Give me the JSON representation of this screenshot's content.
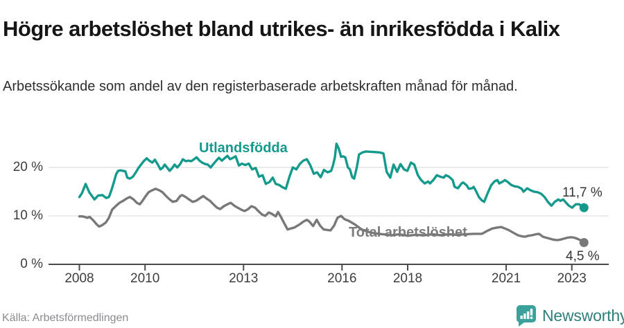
{
  "footer": {
    "source": "Källa: Arbetsförmedlingen",
    "brand": "Newsworthy"
  },
  "colors": {
    "teal_line": "#149a8c",
    "gray_line": "#787878",
    "axis": "#4a4a4a",
    "grid": "#e4e4e4",
    "brand_icon": "#3aa29a",
    "brand_text": "#2d7f7b"
  },
  "chart_data": {
    "type": "line",
    "title": "Högre arbetslöshet bland utrikes- än inrikesfödda i Kalix",
    "subtitle": "Arbetssökande som andel av den registerbaserade arbetskraften månad för månad.",
    "xlabel": "",
    "ylabel": "",
    "xlim": [
      2008.0,
      2023.6
    ],
    "ylim": [
      0,
      26
    ],
    "grid": "horizontal",
    "legend": "inline-labels",
    "x_ticks": [
      {
        "year": 2008,
        "label": "2008"
      },
      {
        "year": 2010,
        "label": "2010"
      },
      {
        "year": 2013,
        "label": "2013"
      },
      {
        "year": 2016,
        "label": "2016"
      },
      {
        "year": 2018,
        "label": "2018"
      },
      {
        "year": 2021,
        "label": "2021"
      },
      {
        "year": 2023,
        "label": "2023"
      }
    ],
    "y_ticks": [
      {
        "value": 0,
        "label": "0 %"
      },
      {
        "value": 10,
        "label": "10 %"
      },
      {
        "value": 20,
        "label": "20 %"
      }
    ],
    "series": [
      {
        "name": "Utlandsfödda",
        "color": "#149a8c",
        "end_label": "11,7 %",
        "end_value": 11.7,
        "points": [
          [
            2008.0,
            13.9
          ],
          [
            2008.08,
            14.7
          ],
          [
            2008.19,
            16.6
          ],
          [
            2008.3,
            14.9
          ],
          [
            2008.46,
            13.4
          ],
          [
            2008.57,
            14.2
          ],
          [
            2008.7,
            14.3
          ],
          [
            2008.82,
            13.7
          ],
          [
            2008.9,
            13.9
          ],
          [
            2008.96,
            15.0
          ],
          [
            2009.04,
            16.7
          ],
          [
            2009.12,
            18.6
          ],
          [
            2009.18,
            19.3
          ],
          [
            2009.25,
            19.4
          ],
          [
            2009.33,
            19.3
          ],
          [
            2009.4,
            19.2
          ],
          [
            2009.46,
            17.9
          ],
          [
            2009.54,
            17.7
          ],
          [
            2009.63,
            18.1
          ],
          [
            2009.71,
            18.9
          ],
          [
            2009.8,
            19.9
          ],
          [
            2009.88,
            20.6
          ],
          [
            2009.96,
            21.3
          ],
          [
            2010.05,
            21.9
          ],
          [
            2010.13,
            21.4
          ],
          [
            2010.22,
            21.0
          ],
          [
            2010.3,
            21.6
          ],
          [
            2010.38,
            20.7
          ],
          [
            2010.47,
            19.6
          ],
          [
            2010.53,
            19.9
          ],
          [
            2010.6,
            20.6
          ],
          [
            2010.68,
            19.9
          ],
          [
            2010.75,
            19.3
          ],
          [
            2010.83,
            19.9
          ],
          [
            2010.9,
            20.6
          ],
          [
            2010.98,
            20.0
          ],
          [
            2011.07,
            20.7
          ],
          [
            2011.15,
            21.7
          ],
          [
            2011.24,
            21.3
          ],
          [
            2011.32,
            21.4
          ],
          [
            2011.41,
            21.3
          ],
          [
            2011.49,
            21.7
          ],
          [
            2011.57,
            22.1
          ],
          [
            2011.66,
            21.4
          ],
          [
            2011.74,
            21.0
          ],
          [
            2011.83,
            20.7
          ],
          [
            2011.91,
            20.6
          ],
          [
            2012.0,
            20.0
          ],
          [
            2012.08,
            20.7
          ],
          [
            2012.17,
            21.4
          ],
          [
            2012.25,
            22.0
          ],
          [
            2012.34,
            21.4
          ],
          [
            2012.42,
            21.9
          ],
          [
            2012.51,
            22.4
          ],
          [
            2012.59,
            21.7
          ],
          [
            2012.68,
            22.0
          ],
          [
            2012.76,
            22.3
          ],
          [
            2012.86,
            20.4
          ],
          [
            2012.95,
            20.8
          ],
          [
            2013.05,
            20.5
          ],
          [
            2013.16,
            20.8
          ],
          [
            2013.26,
            19.6
          ],
          [
            2013.37,
            19.9
          ],
          [
            2013.47,
            18.1
          ],
          [
            2013.58,
            18.4
          ],
          [
            2013.68,
            16.6
          ],
          [
            2013.79,
            17.0
          ],
          [
            2013.89,
            17.9
          ],
          [
            2013.98,
            16.6
          ],
          [
            2014.08,
            16.4
          ],
          [
            2014.19,
            15.9
          ],
          [
            2014.29,
            15.6
          ],
          [
            2014.4,
            18.1
          ],
          [
            2014.5,
            20.0
          ],
          [
            2014.61,
            19.6
          ],
          [
            2014.71,
            20.7
          ],
          [
            2014.82,
            21.4
          ],
          [
            2014.93,
            21.7
          ],
          [
            2015.03,
            20.5
          ],
          [
            2015.14,
            18.7
          ],
          [
            2015.24,
            19.0
          ],
          [
            2015.35,
            18.0
          ],
          [
            2015.45,
            19.5
          ],
          [
            2015.56,
            19.0
          ],
          [
            2015.67,
            19.3
          ],
          [
            2015.72,
            20.3
          ],
          [
            2015.78,
            22.0
          ],
          [
            2015.83,
            24.9
          ],
          [
            2015.9,
            23.9
          ],
          [
            2015.97,
            22.2
          ],
          [
            2016.03,
            22.3
          ],
          [
            2016.1,
            22.1
          ],
          [
            2016.18,
            20.0
          ],
          [
            2016.24,
            19.6
          ],
          [
            2016.31,
            18.0
          ],
          [
            2016.37,
            17.7
          ],
          [
            2016.45,
            20.0
          ],
          [
            2016.52,
            22.7
          ],
          [
            2016.62,
            23.1
          ],
          [
            2016.73,
            23.3
          ],
          [
            2016.94,
            23.2
          ],
          [
            2017.15,
            23.1
          ],
          [
            2017.26,
            22.9
          ],
          [
            2017.36,
            19.1
          ],
          [
            2017.47,
            17.9
          ],
          [
            2017.57,
            20.6
          ],
          [
            2017.68,
            19.1
          ],
          [
            2017.78,
            20.7
          ],
          [
            2017.89,
            19.6
          ],
          [
            2017.99,
            19.3
          ],
          [
            2018.1,
            21.0
          ],
          [
            2018.2,
            20.6
          ],
          [
            2018.31,
            18.4
          ],
          [
            2018.41,
            17.4
          ],
          [
            2018.52,
            16.7
          ],
          [
            2018.62,
            17.1
          ],
          [
            2018.68,
            16.7
          ],
          [
            2018.78,
            17.4
          ],
          [
            2018.89,
            18.4
          ],
          [
            2018.99,
            18.1
          ],
          [
            2019.1,
            17.9
          ],
          [
            2019.16,
            18.4
          ],
          [
            2019.26,
            18.1
          ],
          [
            2019.37,
            17.4
          ],
          [
            2019.43,
            16.0
          ],
          [
            2019.53,
            15.7
          ],
          [
            2019.64,
            16.7
          ],
          [
            2019.69,
            16.9
          ],
          [
            2019.8,
            16.3
          ],
          [
            2019.86,
            15.6
          ],
          [
            2019.96,
            15.7
          ],
          [
            2020.01,
            16.0
          ],
          [
            2020.09,
            15.0
          ],
          [
            2020.17,
            13.9
          ],
          [
            2020.26,
            13.2
          ],
          [
            2020.33,
            12.9
          ],
          [
            2020.43,
            14.6
          ],
          [
            2020.54,
            16.3
          ],
          [
            2020.64,
            17.1
          ],
          [
            2020.73,
            17.4
          ],
          [
            2020.79,
            16.7
          ],
          [
            2020.9,
            17.1
          ],
          [
            2020.96,
            17.4
          ],
          [
            2021.05,
            17.0
          ],
          [
            2021.15,
            16.4
          ],
          [
            2021.26,
            16.1
          ],
          [
            2021.36,
            16.0
          ],
          [
            2021.47,
            15.6
          ],
          [
            2021.53,
            15.0
          ],
          [
            2021.64,
            15.7
          ],
          [
            2021.74,
            15.3
          ],
          [
            2021.85,
            15.0
          ],
          [
            2021.95,
            14.9
          ],
          [
            2022.06,
            14.6
          ],
          [
            2022.17,
            13.9
          ],
          [
            2022.27,
            12.9
          ],
          [
            2022.38,
            12.1
          ],
          [
            2022.48,
            12.9
          ],
          [
            2022.59,
            13.4
          ],
          [
            2022.65,
            13.1
          ],
          [
            2022.74,
            13.4
          ],
          [
            2022.8,
            12.9
          ],
          [
            2022.91,
            12.1
          ],
          [
            2023.01,
            11.7
          ],
          [
            2023.12,
            12.4
          ],
          [
            2023.22,
            12.4
          ],
          [
            2023.37,
            11.7
          ]
        ]
      },
      {
        "name": "Total arbetslöshet",
        "color": "#787878",
        "end_label": "4,5 %",
        "end_value": 4.5,
        "points": [
          [
            2008.0,
            9.9
          ],
          [
            2008.1,
            9.9
          ],
          [
            2008.25,
            9.6
          ],
          [
            2008.31,
            9.8
          ],
          [
            2008.42,
            9.1
          ],
          [
            2008.52,
            8.3
          ],
          [
            2008.6,
            7.8
          ],
          [
            2008.7,
            8.1
          ],
          [
            2008.8,
            8.6
          ],
          [
            2008.9,
            9.6
          ],
          [
            2009.0,
            11.3
          ],
          [
            2009.12,
            12.1
          ],
          [
            2009.22,
            12.7
          ],
          [
            2009.33,
            13.1
          ],
          [
            2009.44,
            13.6
          ],
          [
            2009.54,
            13.9
          ],
          [
            2009.65,
            13.4
          ],
          [
            2009.75,
            12.7
          ],
          [
            2009.84,
            12.4
          ],
          [
            2009.9,
            12.9
          ],
          [
            2010.0,
            13.9
          ],
          [
            2010.11,
            14.9
          ],
          [
            2010.22,
            15.3
          ],
          [
            2010.32,
            15.6
          ],
          [
            2010.43,
            15.3
          ],
          [
            2010.53,
            14.9
          ],
          [
            2010.64,
            14.1
          ],
          [
            2010.75,
            13.4
          ],
          [
            2010.85,
            12.9
          ],
          [
            2010.96,
            13.1
          ],
          [
            2011.07,
            14.1
          ],
          [
            2011.13,
            14.3
          ],
          [
            2011.24,
            13.9
          ],
          [
            2011.34,
            13.4
          ],
          [
            2011.45,
            12.9
          ],
          [
            2011.55,
            13.1
          ],
          [
            2011.66,
            13.6
          ],
          [
            2011.77,
            14.1
          ],
          [
            2011.87,
            13.6
          ],
          [
            2011.98,
            13.1
          ],
          [
            2012.08,
            12.4
          ],
          [
            2012.19,
            11.7
          ],
          [
            2012.29,
            11.4
          ],
          [
            2012.4,
            12.0
          ],
          [
            2012.51,
            12.4
          ],
          [
            2012.61,
            12.7
          ],
          [
            2012.72,
            12.1
          ],
          [
            2012.82,
            11.7
          ],
          [
            2012.93,
            11.3
          ],
          [
            2013.03,
            11.0
          ],
          [
            2013.14,
            11.4
          ],
          [
            2013.24,
            12.0
          ],
          [
            2013.35,
            11.7
          ],
          [
            2013.45,
            11.0
          ],
          [
            2013.56,
            10.3
          ],
          [
            2013.66,
            10.0
          ],
          [
            2013.77,
            10.7
          ],
          [
            2013.87,
            10.4
          ],
          [
            2013.98,
            9.9
          ],
          [
            2014.05,
            10.8
          ],
          [
            2014.13,
            9.9
          ],
          [
            2014.23,
            8.6
          ],
          [
            2014.34,
            7.2
          ],
          [
            2014.44,
            7.4
          ],
          [
            2014.55,
            7.6
          ],
          [
            2014.72,
            8.3
          ],
          [
            2014.82,
            8.8
          ],
          [
            2014.93,
            9.2
          ],
          [
            2015.01,
            8.8
          ],
          [
            2015.12,
            7.9
          ],
          [
            2015.23,
            9.2
          ],
          [
            2015.33,
            8.0
          ],
          [
            2015.44,
            7.2
          ],
          [
            2015.55,
            7.1
          ],
          [
            2015.65,
            7.0
          ],
          [
            2015.76,
            8.0
          ],
          [
            2015.86,
            9.6
          ],
          [
            2015.97,
            10.0
          ],
          [
            2016.08,
            9.3
          ],
          [
            2016.2,
            9.0
          ],
          [
            2016.4,
            8.2
          ],
          [
            2016.6,
            7.2
          ],
          [
            2016.8,
            6.7
          ],
          [
            2017.0,
            6.4
          ],
          [
            2017.25,
            6.2
          ],
          [
            2017.5,
            6.0
          ],
          [
            2017.75,
            6.2
          ],
          [
            2018.0,
            5.9
          ],
          [
            2018.25,
            6.1
          ],
          [
            2018.5,
            6.0
          ],
          [
            2018.75,
            6.2
          ],
          [
            2019.0,
            6.0
          ],
          [
            2019.25,
            6.2
          ],
          [
            2019.5,
            6.1
          ],
          [
            2019.75,
            6.2
          ],
          [
            2020.0,
            6.3
          ],
          [
            2020.26,
            6.3
          ],
          [
            2020.42,
            6.9
          ],
          [
            2020.58,
            7.4
          ],
          [
            2020.73,
            7.6
          ],
          [
            2020.85,
            7.7
          ],
          [
            2020.96,
            7.4
          ],
          [
            2021.07,
            7.1
          ],
          [
            2021.2,
            6.6
          ],
          [
            2021.36,
            6.0
          ],
          [
            2021.47,
            5.8
          ],
          [
            2021.57,
            5.7
          ],
          [
            2021.68,
            5.9
          ],
          [
            2021.78,
            6.0
          ],
          [
            2021.9,
            6.2
          ],
          [
            2022.0,
            6.3
          ],
          [
            2022.12,
            5.7
          ],
          [
            2022.22,
            5.5
          ],
          [
            2022.33,
            5.3
          ],
          [
            2022.44,
            5.1
          ],
          [
            2022.55,
            5.0
          ],
          [
            2022.65,
            5.1
          ],
          [
            2022.76,
            5.3
          ],
          [
            2022.86,
            5.5
          ],
          [
            2022.97,
            5.6
          ],
          [
            2023.08,
            5.5
          ],
          [
            2023.16,
            5.3
          ],
          [
            2023.26,
            5.0
          ],
          [
            2023.37,
            4.5
          ]
        ]
      }
    ]
  }
}
